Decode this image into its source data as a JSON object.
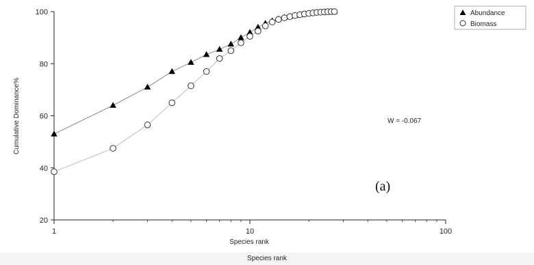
{
  "chart_data": {
    "type": "line",
    "xlabel": "Species rank",
    "ylabel": "Cumulative Dominance%",
    "xscale": "log",
    "xlim": [
      1,
      100
    ],
    "ylim": [
      20,
      100
    ],
    "x_ticks": [
      "1",
      "10",
      "100"
    ],
    "y_ticks": [
      "20",
      "40",
      "60",
      "80",
      "100"
    ],
    "legend_position": "top-right",
    "annotation": "W = -0.067",
    "panel_label": "(a)",
    "series": [
      {
        "name": "Abundance",
        "marker": "filled-triangle",
        "color": "#000000",
        "line_color": "#888888",
        "x": [
          1,
          2,
          3,
          4,
          5,
          6,
          7,
          8,
          9,
          10,
          11,
          12,
          13,
          14,
          15,
          16,
          17,
          18,
          19,
          20,
          21,
          22,
          23,
          24,
          25,
          26,
          27
        ],
        "y": [
          53,
          64,
          71,
          77,
          80.5,
          83.5,
          85.5,
          87.5,
          90,
          92,
          94,
          95.5,
          96.5,
          97.2,
          97.8,
          98.2,
          98.6,
          98.9,
          99.2,
          99.4,
          99.6,
          99.7,
          99.8,
          99.9,
          99.95,
          100,
          100
        ]
      },
      {
        "name": "Biomass",
        "marker": "open-circle",
        "color": "#333333",
        "line_color": "#bbbbbb",
        "x": [
          1,
          2,
          3,
          4,
          5,
          6,
          7,
          8,
          9,
          10,
          11,
          12,
          13,
          14,
          15,
          16,
          17,
          18,
          19,
          20,
          21,
          22,
          23,
          24,
          25,
          26,
          27
        ],
        "y": [
          38.5,
          47.5,
          56.5,
          65,
          71.5,
          77,
          82,
          85,
          88,
          90.5,
          92.5,
          94.5,
          96,
          97,
          97.6,
          98.1,
          98.5,
          98.8,
          99.1,
          99.3,
          99.5,
          99.7,
          99.8,
          99.9,
          99.95,
          100,
          100
        ]
      }
    ]
  },
  "footer_label": "Species rank"
}
